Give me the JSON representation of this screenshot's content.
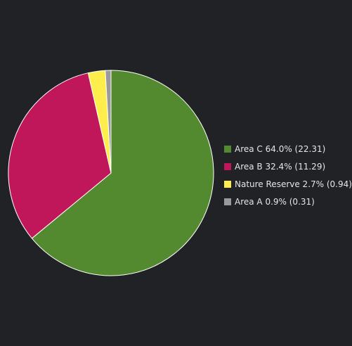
{
  "chart_data": {
    "type": "pie",
    "title": "",
    "start_angle_deg": 0,
    "direction": "clockwise",
    "slices": [
      {
        "name": "Area C",
        "value": 22.31,
        "percent_label": "64.0%",
        "value_label": "(22.31)",
        "color": "#548a2f",
        "legend_text": "Area C 64.0% (22.31)"
      },
      {
        "name": "Area B",
        "value": 11.29,
        "percent_label": "32.4%",
        "value_label": "(11.29)",
        "color": "#c0175b",
        "legend_text": "Area B 32.4% (11.29)"
      },
      {
        "name": "Nature Reserve",
        "value": 0.94,
        "percent_label": "2.7%",
        "value_label": "(0.94)",
        "color": "#fdee4b",
        "legend_text": "Nature Reserve 2.7% (0.94)"
      },
      {
        "name": "Area A",
        "value": 0.31,
        "percent_label": "0.9%",
        "value_label": "(0.31)",
        "color": "#9a9a9a",
        "legend_text": "Area A 0.9% (0.31)"
      }
    ],
    "legend_position": "right",
    "slice_border_color": "#ffffff",
    "background_color": "#212226"
  }
}
